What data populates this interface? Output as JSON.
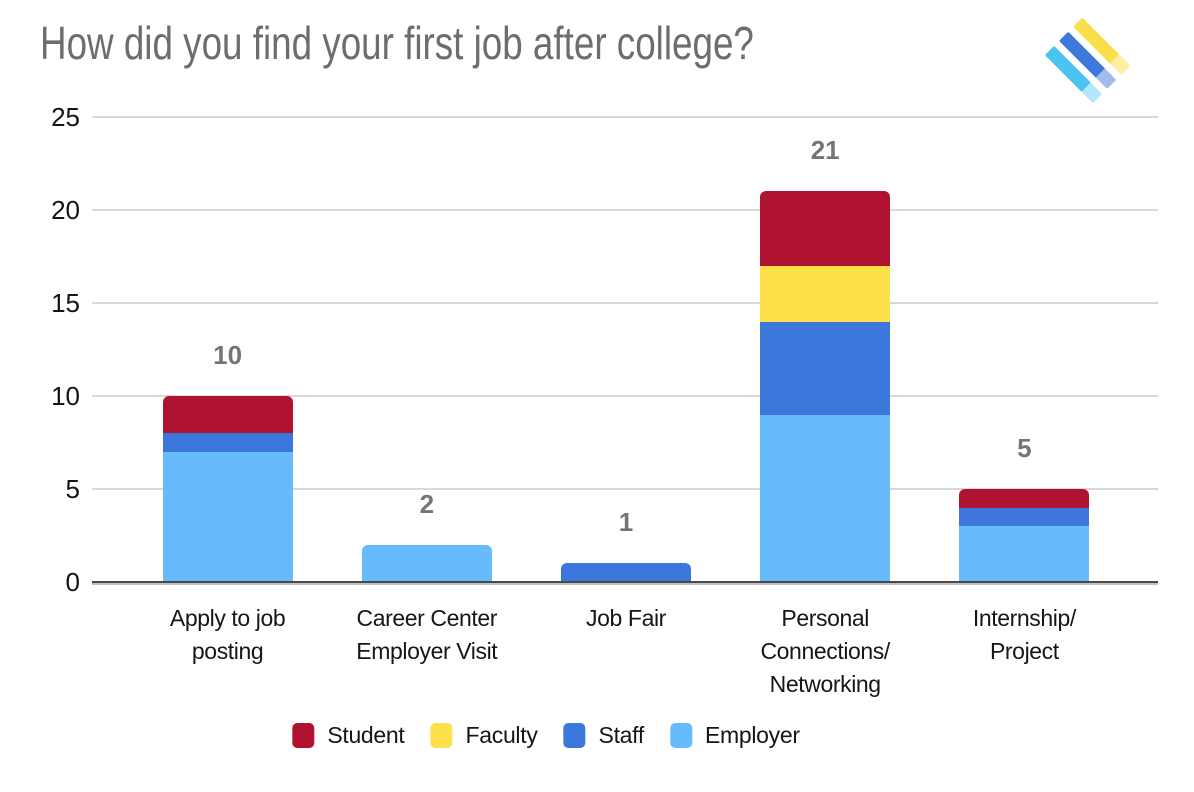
{
  "title": "How did you find your first job after college?",
  "logo": {
    "stripes": [
      {
        "name": "yellow",
        "color": "#FBDF4A",
        "tail": "#FDF0A4"
      },
      {
        "name": "blue",
        "color": "#3D79DA",
        "tail": "#A3BBEB"
      },
      {
        "name": "cyan",
        "color": "#4BC4F2",
        "tail": "#B2E6F8"
      }
    ]
  },
  "chart_data": {
    "type": "bar",
    "stacked": true,
    "title": "How did you find your first job after college?",
    "categories": [
      "Apply to job\nposting",
      "Career Center\nEmployer Visit",
      "Job Fair",
      "Personal\nConnections/\nNetworking",
      "Internship/\nProject"
    ],
    "series": [
      {
        "name": "Student",
        "color": "#B01330",
        "values": [
          2,
          0,
          0,
          4,
          1
        ]
      },
      {
        "name": "Faculty",
        "color": "#FDE14B",
        "values": [
          0,
          0,
          0,
          3,
          0
        ]
      },
      {
        "name": "Staff",
        "color": "#3C78DC",
        "values": [
          1,
          0,
          1,
          5,
          1
        ]
      },
      {
        "name": "Employer",
        "color": "#66BBFC",
        "values": [
          7,
          2,
          0,
          9,
          3
        ]
      }
    ],
    "stack_order_bottom_to_top": [
      "Employer",
      "Staff",
      "Faculty",
      "Student"
    ],
    "totals": [
      10,
      2,
      1,
      21,
      5
    ],
    "y_ticks": [
      0,
      5,
      10,
      15,
      20,
      25
    ],
    "ylim": [
      0,
      25
    ],
    "grid": true,
    "legend": [
      "Student",
      "Faculty",
      "Staff",
      "Employer"
    ],
    "legend_position": "bottom",
    "xlabel": "",
    "ylabel": ""
  },
  "colors": {
    "background": "#FFFFFF",
    "title_text": "#6D6D6D",
    "total_label": "#757575",
    "axis_label": "#141414",
    "gridline": "#D9D9D9",
    "axis_line": "#494949",
    "axis_line_shadow": "#ACACAC"
  }
}
